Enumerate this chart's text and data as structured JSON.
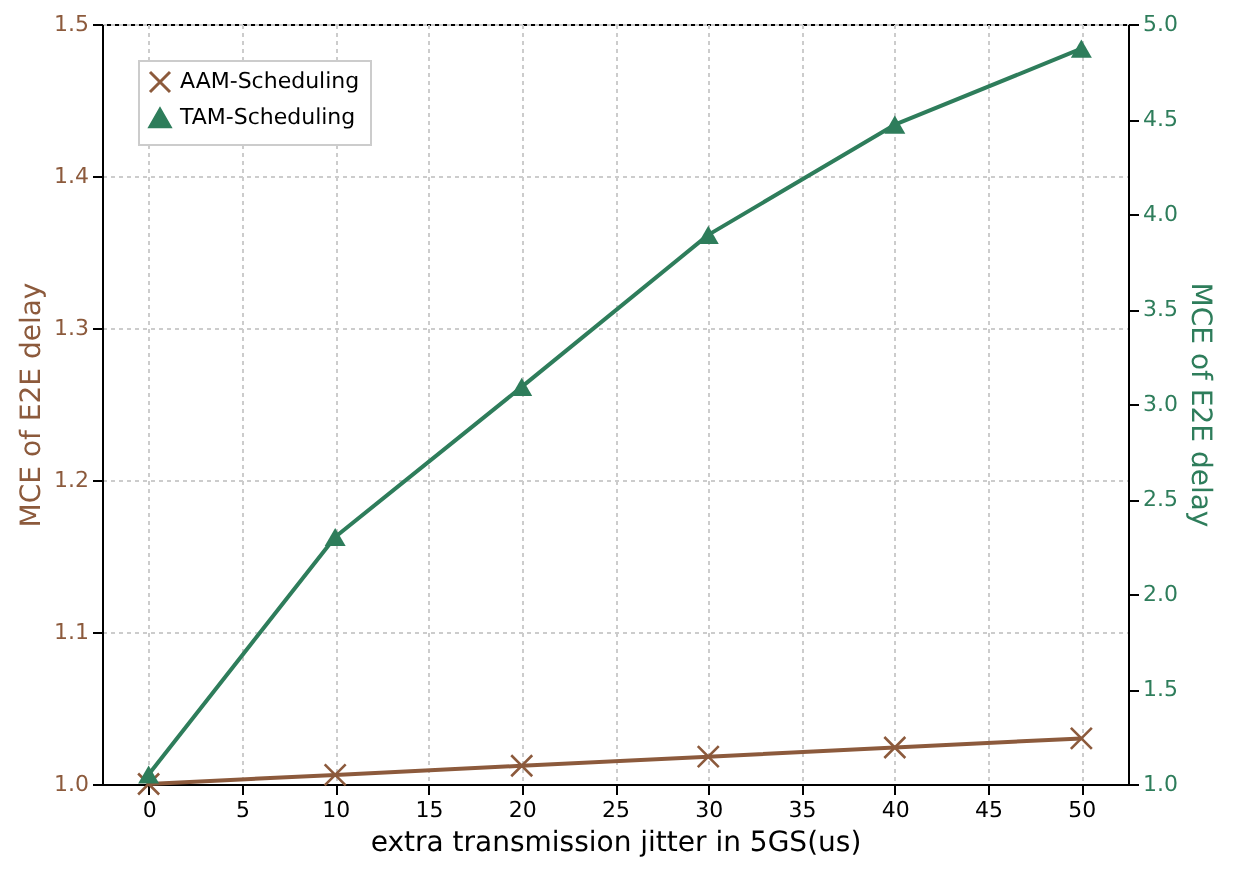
{
  "chart_data": {
    "type": "line",
    "x": [
      0,
      10,
      20,
      30,
      40,
      50
    ],
    "xlabel": "extra transmission jitter in 5GS(us)",
    "ylabel": "MCE of E2E delay",
    "y2label": "MCE of E2E delay",
    "series": [
      {
        "name": "AAM-Scheduling",
        "color": "#8c5a3c",
        "values": [
          1.0,
          1.006,
          1.012,
          1.018,
          1.024,
          1.03
        ],
        "marker": "cross"
      },
      {
        "name": "TAM-Scheduling",
        "color": "#2e7d5b",
        "values": [
          1.05,
          2.3,
          3.09,
          3.89,
          4.47,
          4.87
        ],
        "axis": "y2",
        "marker": "triangle"
      }
    ],
    "xlim": [
      -2.5,
      52.5
    ],
    "xticks": [
      0,
      5,
      10,
      15,
      20,
      25,
      30,
      35,
      40,
      45,
      50
    ],
    "ylim": [
      1.0,
      1.5
    ],
    "yticks": [
      {
        "value": 1,
        "label": "1.0"
      },
      1.1,
      1.2,
      1.3,
      1.4,
      1.5
    ],
    "y2lim": [
      1.0,
      5.0
    ],
    "y2ticks": [
      {
        "value": 1,
        "label": "1.0"
      },
      1.5,
      {
        "value": 2,
        "label": "2.0"
      },
      2.5,
      {
        "value": 3,
        "label": "3.0"
      },
      3.5,
      {
        "value": 4,
        "label": "4.0"
      },
      4.5,
      {
        "value": 5,
        "label": "5.0"
      }
    ],
    "grid": true,
    "legend": "top left",
    "line_style": "solid"
  }
}
